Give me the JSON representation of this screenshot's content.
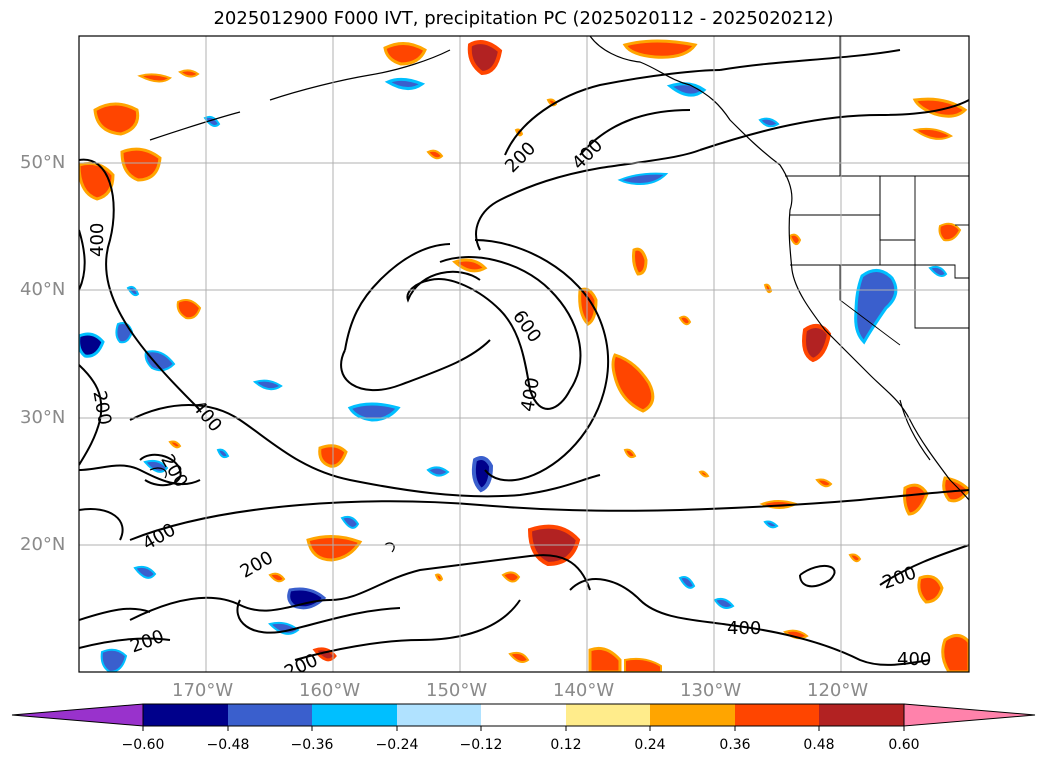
{
  "title": "2025012900 F000 IVT, precipitation PC (2025020112 - 2025020212)",
  "lat_labels": [
    "50°N",
    "40°N",
    "30°N",
    "20°N"
  ],
  "lon_labels": [
    "170°W",
    "160°W",
    "150°W",
    "140°W",
    "130°W",
    "120°W"
  ],
  "contour_labels": [
    "200",
    "400",
    "600",
    "400",
    "200",
    "400",
    "200",
    "200",
    "400",
    "200",
    "200",
    "400",
    "200",
    "400",
    "400"
  ],
  "colorbar": {
    "ticks": [
      "−0.60",
      "−0.48",
      "−0.36",
      "−0.24",
      "−0.12",
      "0.12",
      "0.24",
      "0.36",
      "0.48",
      "0.60"
    ],
    "colors": [
      "#9932cc",
      "#00008b",
      "#3a5fcd",
      "#00bfff",
      "#b0e2ff",
      "#ffffff",
      "#ffec8b",
      "#ffa500",
      "#ff4500",
      "#b22222",
      "#ff82ab"
    ],
    "extend": "both"
  },
  "grid": true
}
